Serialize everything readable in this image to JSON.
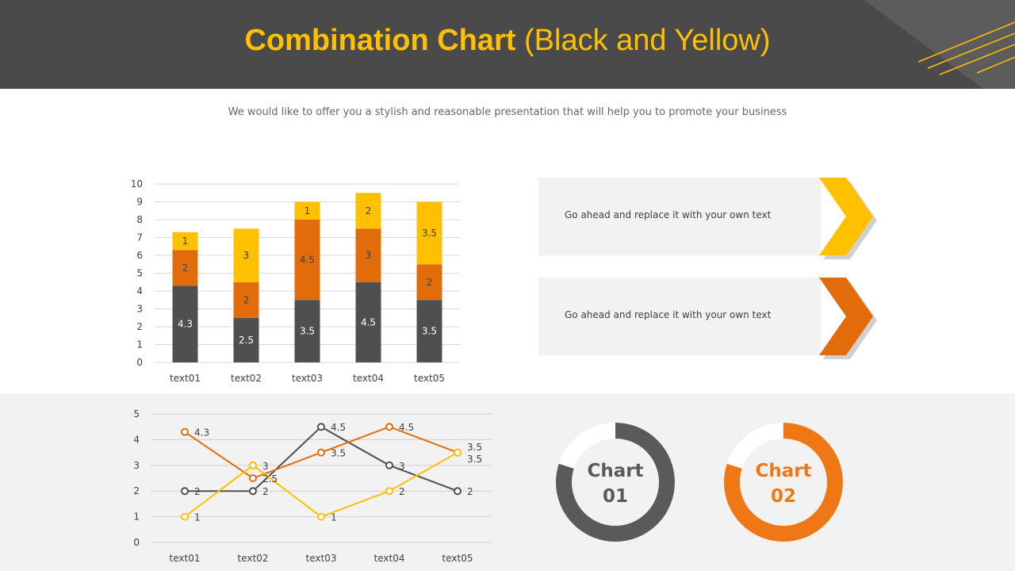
{
  "header": {
    "title_bold": "Combination Chart",
    "title_rest": "(Black and Yellow)"
  },
  "subtitle": "We would like to offer you a stylish and reasonable presentation that will help you to promote your business",
  "colors": {
    "dark": "#4f4f4f",
    "orange": "#e36c0a",
    "yellow": "#ffc000",
    "header": "#4a4a4a"
  },
  "callouts": [
    {
      "text": "Go ahead and replace it with your own text",
      "color": "#ffc000"
    },
    {
      "text": "Go ahead and replace it with your own text",
      "color": "#e36c0a"
    }
  ],
  "chart_data": [
    {
      "type": "bar",
      "stacked": true,
      "categories": [
        "text01",
        "text02",
        "text03",
        "text04",
        "text05"
      ],
      "ylim": [
        0,
        10
      ],
      "yticks": [
        "0",
        "1",
        "2",
        "3",
        "4",
        "5",
        "6",
        "7",
        "8",
        "9",
        "10"
      ],
      "grid": true,
      "series": [
        {
          "color": "#4f4f4f",
          "values": [
            4.3,
            2.5,
            3.5,
            4.5,
            3.5
          ]
        },
        {
          "color": "#e36c0a",
          "values": [
            2,
            2,
            4.5,
            3,
            2
          ]
        },
        {
          "color": "#ffc000",
          "values": [
            1,
            3,
            1,
            2,
            3.5
          ]
        }
      ]
    },
    {
      "type": "line",
      "categories": [
        "text01",
        "text02",
        "text03",
        "text04",
        "text05"
      ],
      "ylim": [
        0,
        5
      ],
      "yticks": [
        "0",
        "1",
        "2",
        "3",
        "4",
        "5"
      ],
      "grid": true,
      "series": [
        {
          "color": "#4f4f4f",
          "values": [
            2,
            2,
            4.5,
            3,
            2
          ]
        },
        {
          "color": "#e36c0a",
          "values": [
            4.3,
            2.5,
            3.5,
            4.5,
            3.5
          ]
        },
        {
          "color": "#ffc000",
          "values": [
            1,
            3,
            1,
            2,
            3.5
          ]
        }
      ]
    },
    {
      "type": "pie",
      "donut": true,
      "label_line1": "Chart",
      "label_line2": "01",
      "color": "#5a5a5a",
      "filled_percent": 80
    },
    {
      "type": "pie",
      "donut": true,
      "label_line1": "Chart",
      "label_line2": "02",
      "color": "#f07814",
      "filled_percent": 80
    }
  ]
}
